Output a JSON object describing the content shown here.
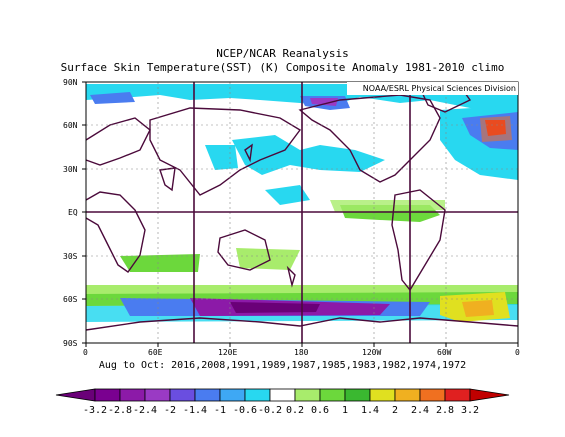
{
  "title": "NCEP/NCAR Reanalysis",
  "subtitle": "Surface Skin Temperature(SST) (K) Composite Anomaly 1981-2010 climo",
  "source": "NOAA/ESRL Physical Sciences Division",
  "period": "Aug to Oct: 2016,2008,1991,1989,1987,1985,1983,1982,1974,1972",
  "lat_labels": [
    "90N",
    "60N",
    "30N",
    "EQ",
    "30S",
    "60S",
    "90S"
  ],
  "lon_labels": [
    "0",
    "60E",
    "120E",
    "180",
    "120W",
    "60W",
    "0"
  ],
  "colorbar": {
    "labels": [
      "-3.2",
      "-2.8",
      "-2.4",
      "-2",
      "-1.4",
      "-1",
      "-0.6",
      "-0.2",
      "0.2",
      "0.6",
      "1",
      "1.4",
      "2",
      "2.4",
      "2.8",
      "3.2"
    ],
    "colors": [
      "#6a0078",
      "#7a0090",
      "#8c1aa8",
      "#9a3ac4",
      "#6a4ee0",
      "#4a7cf0",
      "#3ea8f4",
      "#28d8f0",
      "#ffffff",
      "#a8ec6c",
      "#6cd83c",
      "#3ab830",
      "#e0e020",
      "#f0b020",
      "#f07020",
      "#e02020",
      "#c00000"
    ]
  },
  "anomaly_regions": [
    {
      "lon": [
        15,
        20
      ],
      "lat": [
        75,
        85
      ],
      "value": -1.2
    },
    {
      "lon": [
        270,
        300
      ],
      "lat": [
        70,
        80
      ],
      "value": -1.5
    },
    {
      "lon": [
        325,
        355
      ],
      "lat": [
        40,
        62
      ],
      "value": -1.0
    },
    {
      "lon": [
        160,
        185
      ],
      "lat": [
        30,
        55
      ],
      "value": -0.6
    },
    {
      "lon": [
        190,
        270
      ],
      "lat": [
        -3,
        3
      ],
      "value": 0.8
    },
    {
      "lon": [
        90,
        150
      ],
      "lat": [
        -32,
        -20
      ],
      "value": 0.6
    },
    {
      "lon": [
        0,
        360
      ],
      "lat": [
        -60,
        -52
      ],
      "value": 0.8
    },
    {
      "lon": [
        15,
        270
      ],
      "lat": [
        -68,
        -60
      ],
      "value": -2.4
    },
    {
      "lon": [
        290,
        330
      ],
      "lat": [
        -64,
        -56
      ],
      "value": 2.0
    }
  ]
}
